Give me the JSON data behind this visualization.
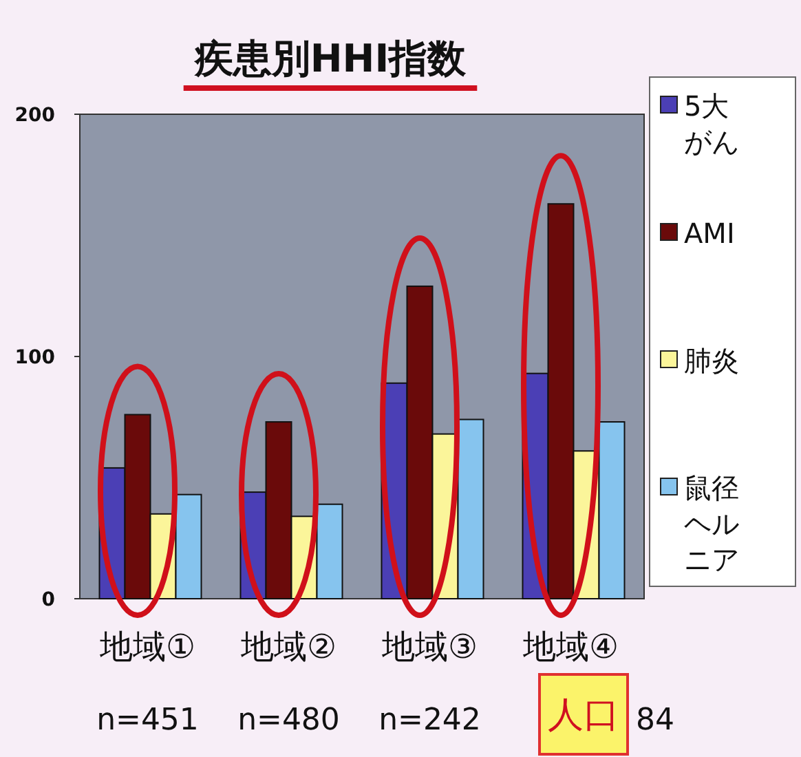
{
  "chart_data": {
    "type": "bar",
    "title": "疾患別HHI指数",
    "categories": [
      "地域①",
      "地域②",
      "地域③",
      "地域④"
    ],
    "series": [
      {
        "name": "5大がん",
        "color": "#4b3fb5",
        "values": [
          54,
          44,
          89,
          93
        ]
      },
      {
        "name": "AMI",
        "color": "#6a0a0a",
        "values": [
          76,
          73,
          129,
          163
        ]
      },
      {
        "name": "肺炎",
        "color": "#fbf59a",
        "values": [
          35,
          34,
          68,
          61
        ]
      },
      {
        "name": "鼠径ヘルニア",
        "color": "#86c4ee",
        "values": [
          43,
          39,
          74,
          73
        ]
      }
    ],
    "ylim": [
      0,
      200
    ],
    "yticks": [
      0,
      100,
      200
    ],
    "legend": "right",
    "grid": false,
    "annotations": [
      "n=451",
      "n=480",
      "n=242",
      "84",
      "人口"
    ]
  }
}
